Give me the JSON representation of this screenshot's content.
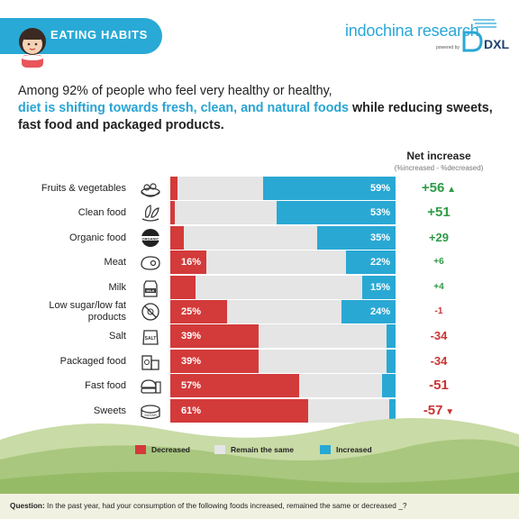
{
  "header": {
    "title": "EATING HABITS",
    "brand_name": "indochina research",
    "brand_powered": "powered by",
    "brand_mark": "DXL"
  },
  "intro": {
    "line1": "Among 92% of people who feel very healthy or healthy,",
    "highlight": "diet is shifting towards fresh, clean, and natural foods",
    "bold": " while reducing sweets, fast food and packaged products."
  },
  "net_header": {
    "title": "Net increase",
    "subtitle": "(%increased - %decreased)"
  },
  "colors": {
    "decreased": "#d33a3a",
    "remain": "#e5e5e5",
    "increased": "#29a8d4",
    "positive": "#2e9b46",
    "negative": "#cc3333",
    "accent": "#29a9d6"
  },
  "chart_data": {
    "type": "bar",
    "orientation": "horizontal",
    "stacked": true,
    "xlim": [
      0,
      100
    ],
    "categories": [
      "Fruits & vegetables",
      "Clean food",
      "Organic food",
      "Meat",
      "Milk",
      "Low sugar/low fat products",
      "Salt",
      "Packaged food",
      "Fast food",
      "Sweets"
    ],
    "category_icons": [
      "salad-icon",
      "leaf-food-icon",
      "organic-badge-icon",
      "meat-icon",
      "milk-carton-icon",
      "no-sugar-icon",
      "salt-bag-icon",
      "packaged-food-icon",
      "fast-food-icon",
      "cake-icon"
    ],
    "series": [
      {
        "name": "Decreased",
        "values": [
          3,
          2,
          6,
          16,
          11,
          25,
          39,
          39,
          57,
          61
        ],
        "labels": [
          "",
          "",
          "",
          "16%",
          "",
          "25%",
          "39%",
          "39%",
          "57%",
          "61%"
        ]
      },
      {
        "name": "Remain the same",
        "values": [
          38,
          45,
          59,
          62,
          74,
          51,
          57,
          57,
          37,
          36
        ],
        "labels": [
          "",
          "",
          "",
          "",
          "",
          "",
          "",
          "",
          "",
          ""
        ]
      },
      {
        "name": "Increased",
        "values": [
          59,
          53,
          35,
          22,
          15,
          24,
          4,
          4,
          6,
          3
        ],
        "labels": [
          "59%",
          "53%",
          "35%",
          "22%",
          "15%",
          "24%",
          "",
          "",
          "",
          ""
        ]
      }
    ],
    "net_increase": [
      "+56",
      "+51",
      "+29",
      "+6",
      "+4",
      "-1",
      "-34",
      "-34",
      "-51",
      "-57"
    ],
    "net_markers": [
      "up",
      "",
      "",
      "",
      "",
      "",
      "",
      "",
      "",
      "down"
    ],
    "legend": [
      "Decreased",
      "Remain the same",
      "Increased"
    ],
    "legend_position": "bottom"
  },
  "question": {
    "prefix": "Question:",
    "text": " In the past year, had your consumption of the following foods increased, remained the same or decreased _?"
  }
}
